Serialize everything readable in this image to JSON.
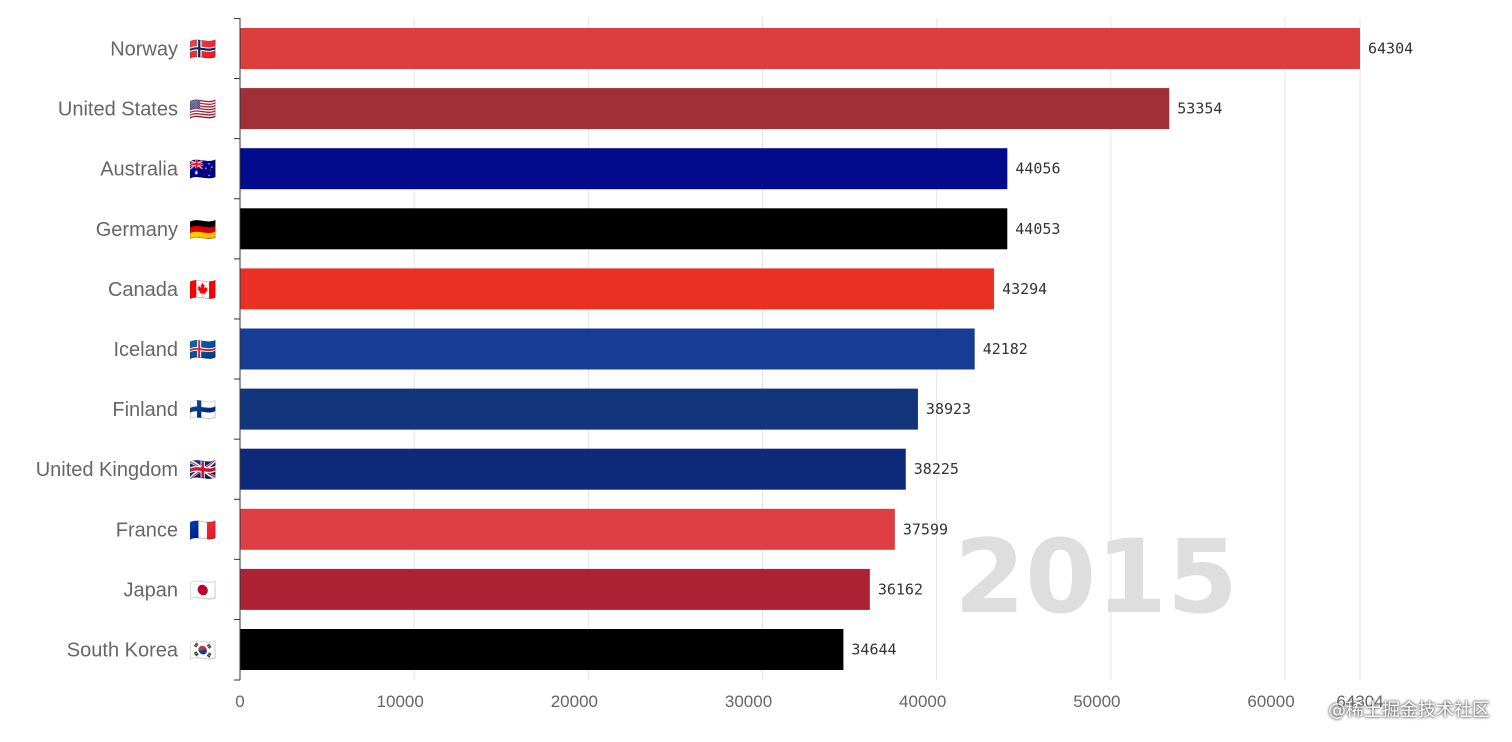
{
  "colors": {
    "grid": "#e6e6e6",
    "axis": "#333333",
    "label": "#666666"
  },
  "chart_data": {
    "type": "bar",
    "orientation": "horizontal",
    "title": "",
    "xlabel": "",
    "ylabel": "",
    "xlim": [
      0,
      64304
    ],
    "x_ticks": [
      0,
      10000,
      20000,
      30000,
      40000,
      50000,
      60000
    ],
    "max_label": "64304",
    "grid": true,
    "year": "2015",
    "categories": [
      {
        "name": "Norway",
        "flag": "🇳🇴",
        "value": 64304,
        "color": "#dc3d3d"
      },
      {
        "name": "United States",
        "flag": "🇺🇸",
        "value": 53354,
        "color": "#a22e38"
      },
      {
        "name": "Australia",
        "flag": "🇦🇺",
        "value": 44056,
        "color": "#010b8b"
      },
      {
        "name": "Germany",
        "flag": "🇩🇪",
        "value": 44053,
        "color": "#000000"
      },
      {
        "name": "Canada",
        "flag": "🇨🇦",
        "value": 43294,
        "color": "#ea3025"
      },
      {
        "name": "Iceland",
        "flag": "🇮🇸",
        "value": 42182,
        "color": "#163d93"
      },
      {
        "name": "Finland",
        "flag": "🇫🇮",
        "value": 38923,
        "color": "#12357c"
      },
      {
        "name": "United Kingdom",
        "flag": "🇬🇧",
        "value": 38225,
        "color": "#0f2a7a"
      },
      {
        "name": "France",
        "flag": "🇫🇷",
        "value": 37599,
        "color": "#dc3e44"
      },
      {
        "name": "Japan",
        "flag": "🇯🇵",
        "value": 36162,
        "color": "#ad2234"
      },
      {
        "name": "South Korea",
        "flag": "🇰🇷",
        "value": 34644,
        "color": "#000000"
      }
    ]
  },
  "watermark": "@稀土掘金技术社区"
}
